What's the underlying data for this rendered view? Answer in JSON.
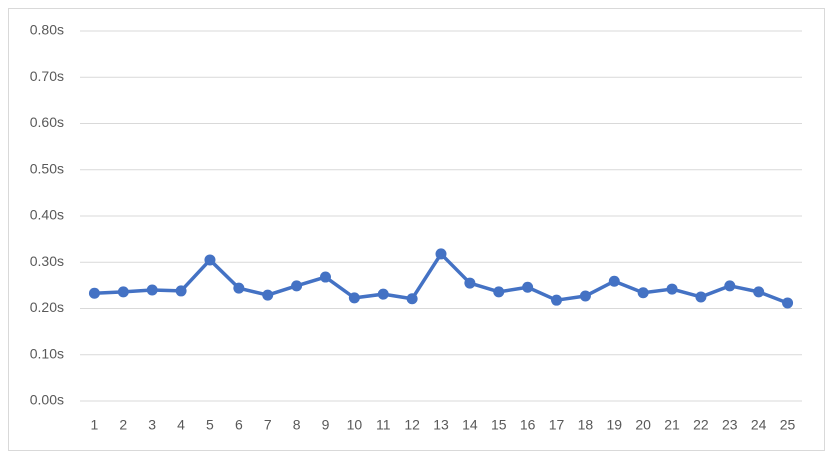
{
  "chart_data": {
    "type": "line",
    "categories": [
      "1",
      "2",
      "3",
      "4",
      "5",
      "6",
      "7",
      "8",
      "9",
      "10",
      "11",
      "12",
      "13",
      "14",
      "15",
      "16",
      "17",
      "18",
      "19",
      "20",
      "21",
      "22",
      "23",
      "24",
      "25"
    ],
    "series": [
      {
        "color": "#4472c4",
        "values": [
          0.233,
          0.236,
          0.24,
          0.238,
          0.305,
          0.244,
          0.229,
          0.249,
          0.268,
          0.223,
          0.231,
          0.221,
          0.318,
          0.255,
          0.236,
          0.246,
          0.218,
          0.227,
          0.259,
          0.234,
          0.242,
          0.225,
          0.249,
          0.236,
          0.212
        ]
      }
    ],
    "ylim": [
      0,
      0.8
    ],
    "yticks": [
      {
        "value": 0,
        "label": "0.00s"
      },
      {
        "value": 0.1,
        "label": "0.10s"
      },
      {
        "value": 0.2,
        "label": "0.20s"
      },
      {
        "value": 0.3,
        "label": "0.30s"
      },
      {
        "value": 0.4,
        "label": "0.40s"
      },
      {
        "value": 0.5,
        "label": "0.50s"
      },
      {
        "value": 0.6,
        "label": "0.60s"
      },
      {
        "value": 0.7,
        "label": "0.70s"
      },
      {
        "value": 0.8,
        "label": "0.80s"
      }
    ],
    "grid": true
  }
}
